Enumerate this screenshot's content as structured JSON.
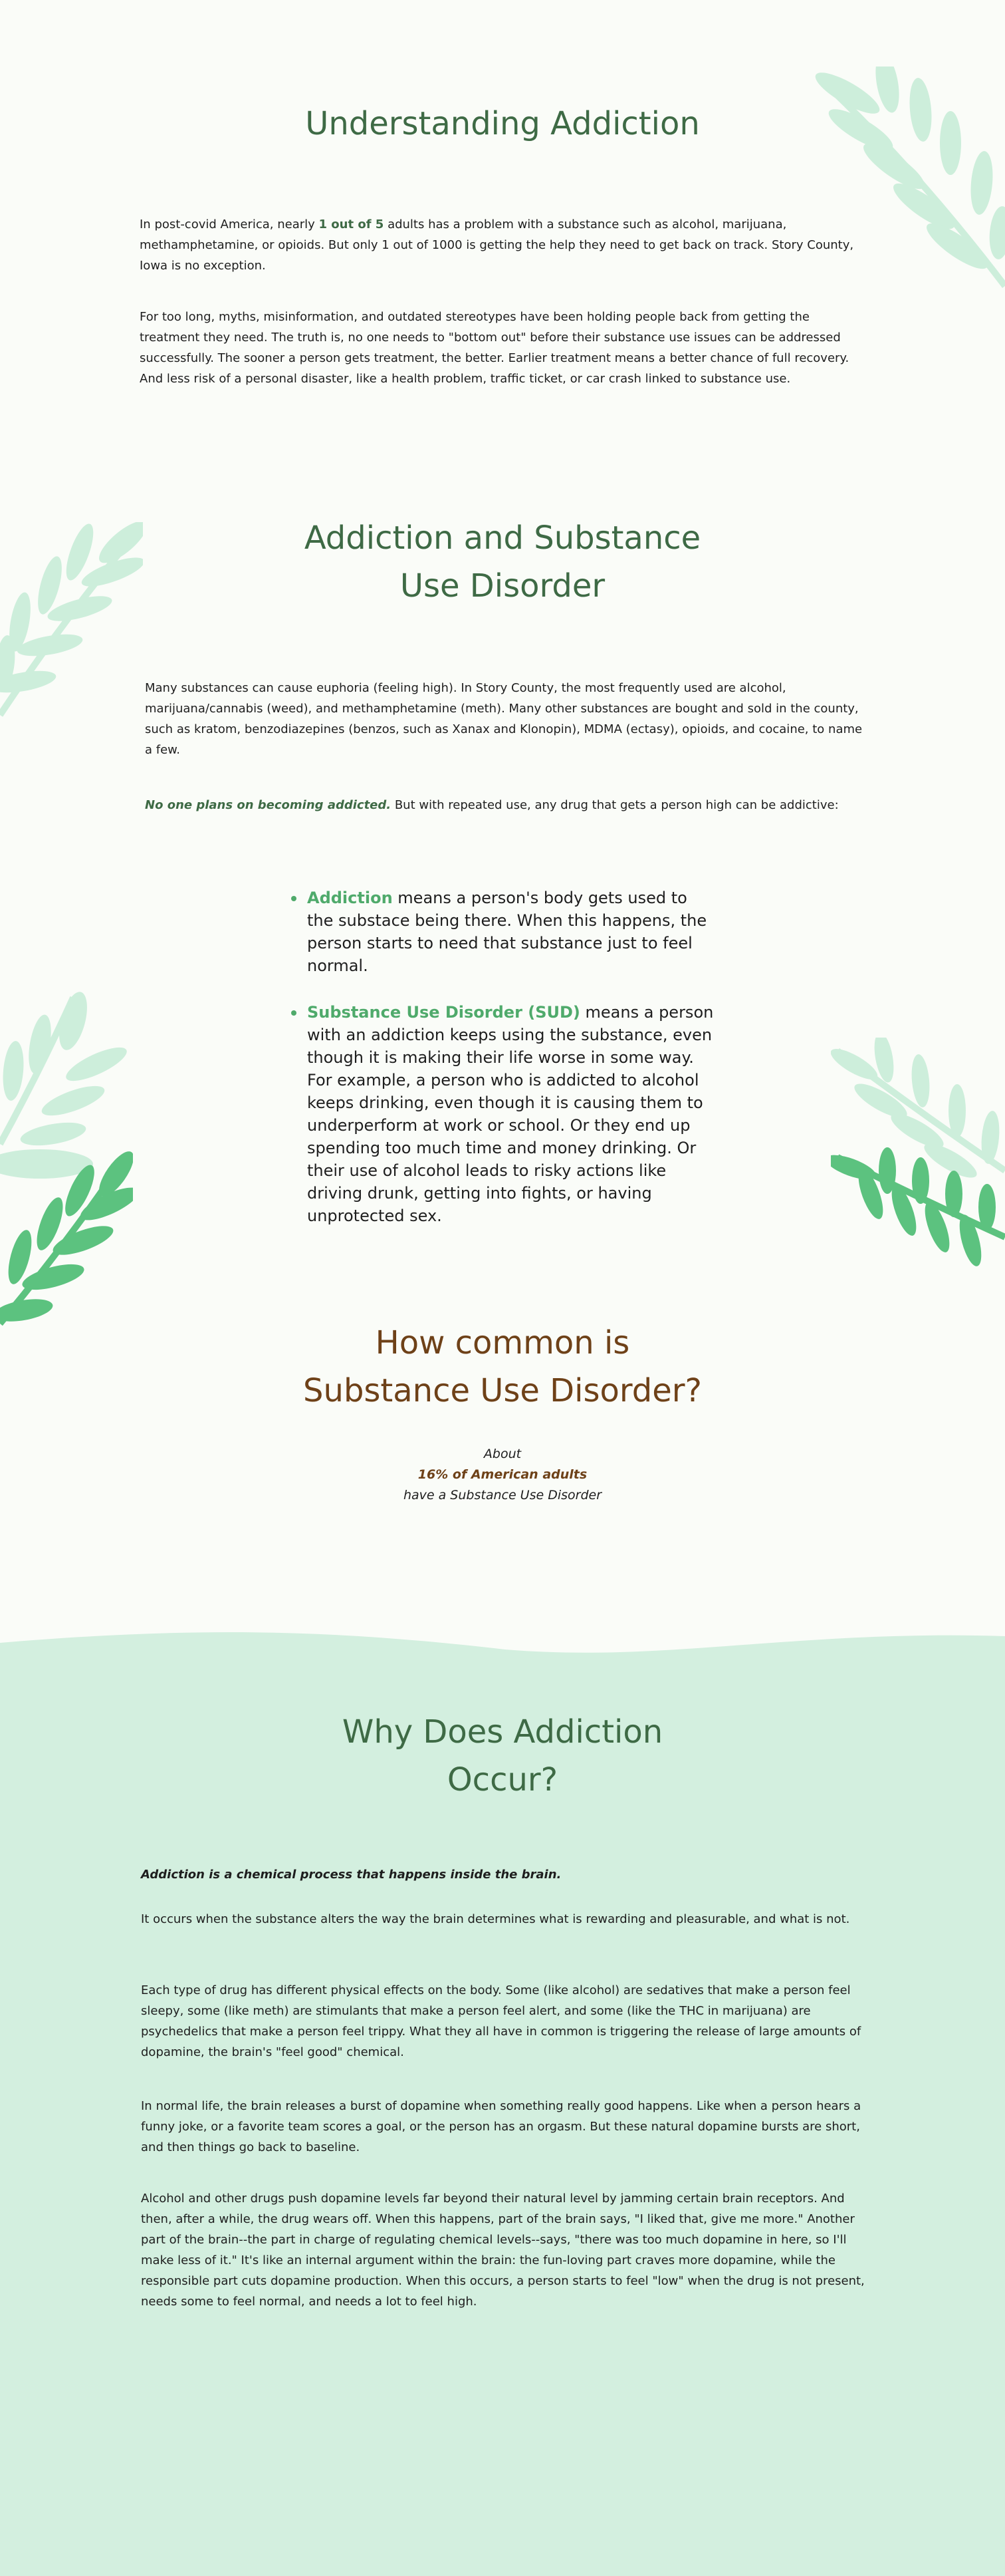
{
  "colors": {
    "background": "#fafcf8",
    "mint_section": "#d3efdf",
    "heading_green": "#3e6a45",
    "accent_green": "#4faa6b",
    "brown": "#6e4118",
    "leaf_light": "#cdeedb",
    "leaf_dark": "#5cc27f"
  },
  "section1": {
    "title": "Understanding Addiction",
    "p1_before": "In post-covid America, nearly ",
    "p1_highlight": "1 out of 5",
    "p1_after": " adults has a problem with a substance such as alcohol, marijuana, methamphetamine, or opioids. But only 1 out of 1000 is getting the help they need to get back on track. Story County, Iowa is no exception.",
    "p2": "For too long, myths, misinformation, and outdated stereotypes have been holding people back from getting the treatment they need. The truth is, no one needs to \"bottom out\" before their substance use issues can be addressed successfully. The sooner a person gets treatment, the better. Earlier treatment means a better chance of full recovery. And less risk of a personal disaster, like a health problem, traffic ticket, or car crash linked to substance use."
  },
  "section2": {
    "title_line1": "Addiction and Substance",
    "title_line2": "Use Disorder",
    "p1": "Many substances can cause euphoria (feeling high). In Story County, the most frequently used are alcohol, marijuana/cannabis (weed), and methamphetamine (meth). Many other substances are bought and sold in the county, such as kratom, benzodiazepines (benzos, such as Xanax and Klonopin), MDMA (ectasy), opioids, and cocaine, to name a few.",
    "p2_emphasis": "No one plans on becoming addicted.",
    "p2_rest": " But with repeated use, any drug that gets a person high can be addictive:",
    "bullets": [
      {
        "term": "Addiction",
        "text": " means a person's body gets used to the substace being there. When this happens, the person starts to need that substance just to feel normal."
      },
      {
        "term": "Substance Use Disorder (SUD)",
        "text": " means a person with an addiction keeps using the substance, even though it is making their life worse in some way. For example, a person who is addicted to alcohol keeps drinking, even though it is causing them to underperform at work or school. Or they end up spending too much time and money drinking. Or their use of alcohol leads to risky actions like driving drunk, getting into fights, or having unprotected sex."
      }
    ]
  },
  "section3": {
    "title_line1": "How common is",
    "title_line2": "Substance Use Disorder?",
    "stat_line1": "About",
    "stat_highlight": "16% of American adults",
    "stat_line3": "have a Substance Use Disorder"
  },
  "section4": {
    "title_line1": "Why Does Addiction",
    "title_line2": "Occur?",
    "lead": "Addiction is a chemical process that happens inside the brain.",
    "p1": "It occurs when the substance alters the way the brain determines what is rewarding and pleasurable, and what is not.",
    "p2": "Each type of drug has different physical effects on the body. Some (like alcohol) are sedatives that make a person feel sleepy, some (like meth) are stimulants that make a person feel alert, and some (like the THC in marijuana) are psychedelics that make a person feel trippy. What they all have in common is triggering the release of large amounts of dopamine, the brain's \"feel good\" chemical.",
    "p3": "In normal life, the brain releases a burst of dopamine when something really good happens. Like when a person hears a funny joke, or a favorite team scores a goal, or the person has an orgasm. But these natural dopamine bursts are short, and then things go back to baseline.",
    "p4": "Alcohol and other drugs push dopamine levels far beyond their natural level by jamming certain brain receptors. And then, after a while, the drug wears off.  When this happens, part of the brain says, \"I liked that, give me more.\" Another part of the brain--the part in charge of regulating chemical levels--says, \"there was too much dopamine in here, so I'll make less of it.\" It's like an internal argument within the brain: the fun-loving part craves more dopamine, while the responsible part cuts dopamine production. When this occurs, a person starts to feel \"low\" when the drug is not present, needs some to feel normal, and needs a lot to feel high."
  }
}
